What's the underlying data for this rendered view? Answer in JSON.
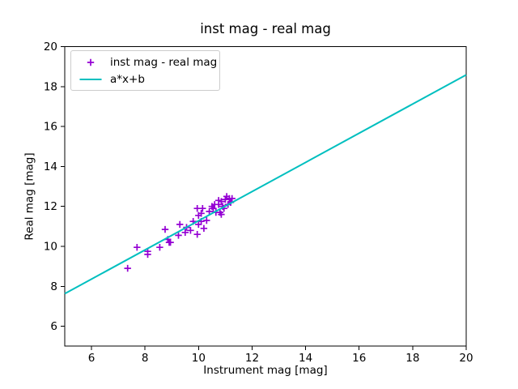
{
  "figure": {
    "background": "#ffffff"
  },
  "chart_data": {
    "type": "scatter",
    "title": "inst mag - real mag",
    "xlabel": "Instrument mag [mag]",
    "ylabel": "Real mag [mag]",
    "xlim": [
      5,
      20
    ],
    "ylim": [
      5,
      20
    ],
    "xticks": [
      6,
      8,
      10,
      12,
      14,
      16,
      18,
      20
    ],
    "yticks": [
      6,
      8,
      10,
      12,
      14,
      16,
      18,
      20
    ],
    "grid": false,
    "legend_position": "upper left",
    "series": [
      {
        "name": "inst mag - real mag",
        "type": "scatter",
        "marker": "plus",
        "color": "#9400D3",
        "points": [
          [
            7.35,
            8.9
          ],
          [
            7.7,
            9.95
          ],
          [
            8.1,
            9.6
          ],
          [
            8.1,
            9.75
          ],
          [
            8.55,
            9.95
          ],
          [
            8.75,
            10.85
          ],
          [
            8.85,
            10.35
          ],
          [
            8.9,
            10.2
          ],
          [
            8.95,
            10.2
          ],
          [
            9.25,
            10.55
          ],
          [
            9.3,
            11.1
          ],
          [
            9.5,
            10.7
          ],
          [
            9.55,
            10.95
          ],
          [
            9.7,
            10.8
          ],
          [
            9.8,
            11.25
          ],
          [
            9.95,
            10.6
          ],
          [
            9.95,
            11.9
          ],
          [
            10.0,
            11.1
          ],
          [
            10.0,
            11.55
          ],
          [
            10.1,
            11.65
          ],
          [
            10.1,
            11.25
          ],
          [
            10.15,
            11.9
          ],
          [
            10.2,
            10.9
          ],
          [
            10.3,
            11.3
          ],
          [
            10.4,
            11.75
          ],
          [
            10.5,
            12.0
          ],
          [
            10.55,
            11.9
          ],
          [
            10.6,
            12.1
          ],
          [
            10.65,
            11.7
          ],
          [
            10.75,
            12.3
          ],
          [
            10.75,
            12.1
          ],
          [
            10.8,
            11.7
          ],
          [
            10.85,
            12.25
          ],
          [
            10.85,
            11.6
          ],
          [
            10.9,
            12.0
          ],
          [
            10.95,
            11.9
          ],
          [
            11.0,
            12.35
          ],
          [
            11.05,
            12.5
          ],
          [
            11.1,
            12.1
          ],
          [
            11.15,
            12.4
          ],
          [
            11.2,
            12.2
          ],
          [
            11.25,
            12.4
          ]
        ]
      },
      {
        "name": "a*x+b",
        "type": "line",
        "color": "#00BFBF",
        "x": [
          5,
          20
        ],
        "y": [
          7.63,
          18.59
        ]
      }
    ]
  }
}
